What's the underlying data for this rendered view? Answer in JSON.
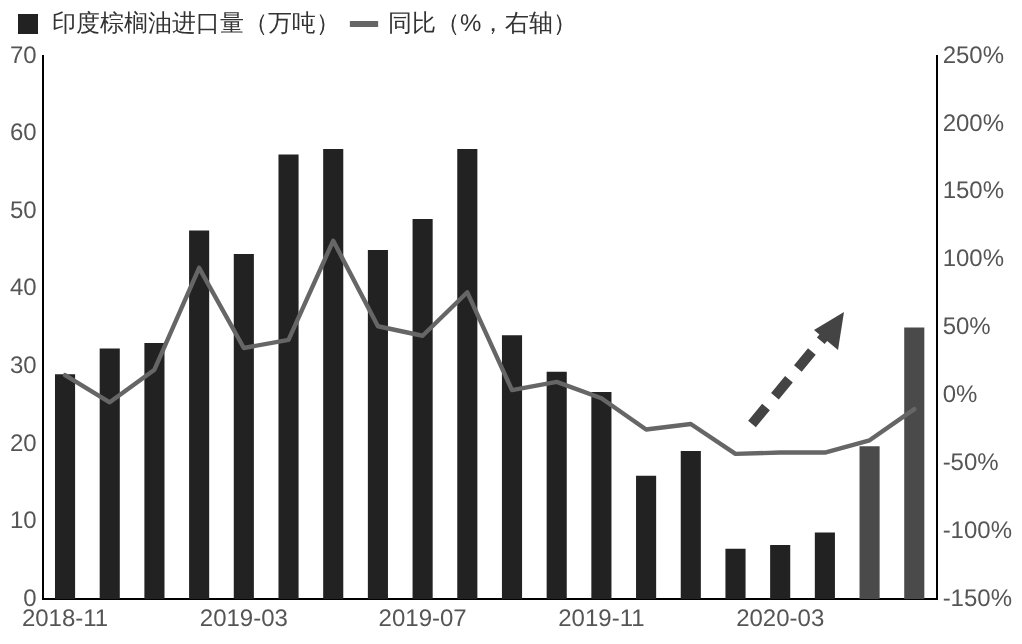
{
  "chart_data": {
    "type": "bar",
    "categories": [
      "2018-11",
      null,
      null,
      null,
      "2019-03",
      null,
      null,
      null,
      "2019-07",
      null,
      null,
      null,
      "2019-11",
      null,
      null,
      null,
      "2020-03",
      null,
      null,
      null
    ],
    "series": [
      {
        "name": "印度棕榈油进口量（万吨）",
        "colors": [
          "#222222",
          "#222222",
          "#222222",
          "#222222",
          "#222222",
          "#222222",
          "#222222",
          "#222222",
          "#222222",
          "#222222",
          "#222222",
          "#222222",
          "#222222",
          "#222222",
          "#222222",
          "#222222",
          "#222222",
          "#222222",
          "#4a4a4a",
          "#4a4a4a"
        ],
        "values": [
          29,
          32.3,
          33,
          47.5,
          44.5,
          57.3,
          58,
          45,
          49,
          58,
          34,
          29.3,
          26.7,
          15.9,
          19.1,
          6.5,
          7,
          8.6,
          19.7,
          35
        ]
      },
      {
        "name": "同比（%，右轴）",
        "type": "line",
        "axis": "y2",
        "color": "#666666",
        "values": [
          15,
          -5,
          19,
          94,
          35,
          41,
          114,
          51,
          44,
          76,
          4,
          10,
          -2,
          -25,
          -21,
          -43,
          -42,
          -42,
          -33,
          -10
        ]
      }
    ],
    "ylim": [
      0,
      70
    ],
    "yticks": [
      0,
      10,
      20,
      30,
      40,
      50,
      60,
      70
    ],
    "y2lim": [
      -150,
      250
    ],
    "y2ticks": [
      {
        "value": -150,
        "label": "-150%"
      },
      {
        "value": -100,
        "label": "-100%"
      },
      {
        "value": -50,
        "label": "-50%"
      },
      {
        "value": 0,
        "label": "0%"
      },
      {
        "value": 50,
        "label": "50%"
      },
      {
        "value": 100,
        "label": "100%"
      },
      {
        "value": 150,
        "label": "150%"
      },
      {
        "value": 200,
        "label": "200%"
      },
      {
        "value": 250,
        "label": "250%"
      }
    ],
    "grid": false,
    "legend": "top left",
    "marker": "none",
    "line_style": "solid"
  }
}
